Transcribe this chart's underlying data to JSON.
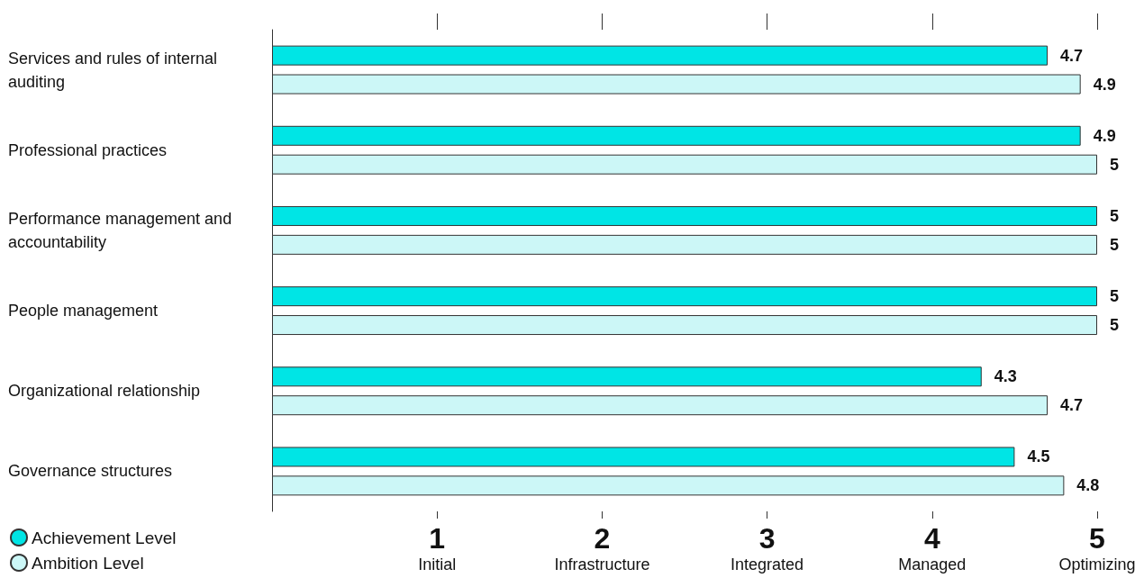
{
  "chart_data": {
    "type": "bar",
    "orientation": "horizontal",
    "categories": [
      "Services and rules of internal auditing",
      "Professional practices",
      "Performance management and accountability",
      "People management",
      "Organizational relationship",
      "Governance structures"
    ],
    "series": [
      {
        "name": "Achievement Level",
        "color": "#00e5e5",
        "values": [
          4.7,
          4.9,
          5,
          5,
          4.3,
          4.5
        ],
        "value_labels": [
          "4.7",
          "4.9",
          "5",
          "5",
          "4.3",
          "4.5"
        ]
      },
      {
        "name": "Ambition Level",
        "color": "#ccf7f7",
        "values": [
          4.9,
          5,
          5,
          5,
          4.7,
          4.8
        ],
        "value_labels": [
          "4.9",
          "5",
          "5",
          "5",
          "4.7",
          "4.8"
        ]
      }
    ],
    "xlim": [
      0,
      5
    ],
    "xticks": [
      {
        "value": 1,
        "label": "1\nInitial"
      },
      {
        "value": 2,
        "label": "2\nInfrastructure"
      },
      {
        "value": 3,
        "label": "3\nIntegrated"
      },
      {
        "value": 4,
        "label": "4\nManaged"
      },
      {
        "value": 5,
        "label": "5\nOptimizing"
      }
    ],
    "legend": "bottom left",
    "grid": false
  }
}
